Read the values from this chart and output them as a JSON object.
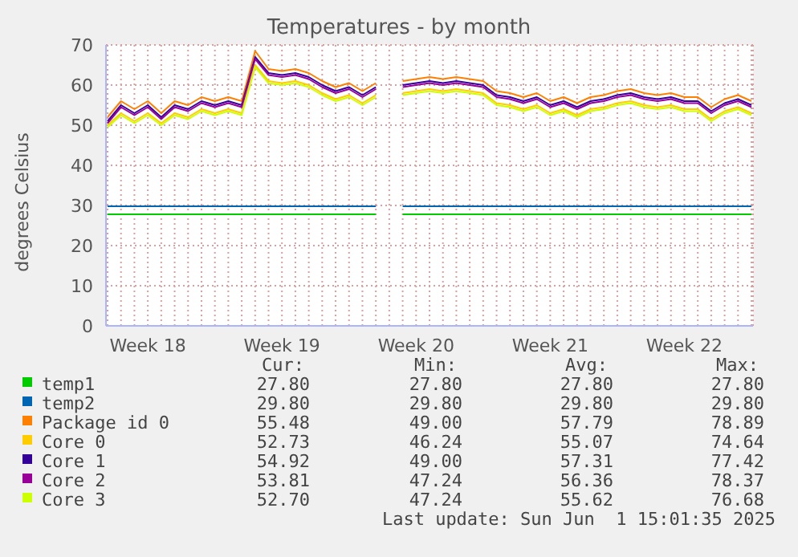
{
  "chart_data": {
    "type": "line",
    "title": "Temperatures - by month",
    "ylabel": "degrees Celsius",
    "categories": [
      null,
      null,
      null,
      "Week 18",
      null,
      null,
      null,
      null,
      null,
      null,
      null,
      null,
      null,
      "Week 19",
      null,
      null,
      null,
      null,
      null,
      null,
      null,
      null,
      null,
      "Week 20",
      null,
      null,
      null,
      null,
      null,
      null,
      null,
      null,
      null,
      "Week 21",
      null,
      null,
      null,
      null,
      null,
      null,
      null,
      null,
      null,
      "Week 22",
      null,
      null,
      null,
      null,
      null
    ],
    "ylim": [
      0,
      70
    ],
    "yticks": [
      0,
      10,
      20,
      30,
      40,
      50,
      60,
      70
    ],
    "grid": true,
    "legend": "bottom",
    "line_style": "solid",
    "series": [
      {
        "name": "temp1",
        "color": "#00cc00",
        "values": [
          27.8,
          27.8,
          27.8,
          27.8,
          27.8,
          27.8,
          27.8,
          27.8,
          27.8,
          27.8,
          27.8,
          27.8,
          27.8,
          27.8,
          27.8,
          27.8,
          27.8,
          27.8,
          27.8,
          27.8,
          27.8,
          null,
          27.8,
          27.8,
          27.8,
          27.8,
          27.8,
          27.8,
          27.8,
          27.8,
          27.8,
          27.8,
          27.8,
          27.8,
          27.8,
          27.8,
          27.8,
          27.8,
          27.8,
          27.8,
          27.8,
          27.8,
          27.8,
          27.8,
          27.8,
          27.8,
          27.8,
          27.8,
          27.8
        ]
      },
      {
        "name": "temp2",
        "color": "#0066b3",
        "values": [
          29.8,
          29.8,
          29.8,
          29.8,
          29.8,
          29.8,
          29.8,
          29.8,
          29.8,
          29.8,
          29.8,
          29.8,
          29.8,
          29.8,
          29.8,
          29.8,
          29.8,
          29.8,
          29.8,
          29.8,
          29.8,
          null,
          29.8,
          29.8,
          29.8,
          29.8,
          29.8,
          29.8,
          29.8,
          29.8,
          29.8,
          29.8,
          29.8,
          29.8,
          29.8,
          29.8,
          29.8,
          29.8,
          29.8,
          29.8,
          29.8,
          29.8,
          29.8,
          29.8,
          29.8,
          29.8,
          29.8,
          29.8,
          29.8
        ]
      },
      {
        "name": "Package id 0",
        "color": "#ff8000",
        "values": [
          52,
          56,
          54,
          56,
          53,
          56,
          55,
          57,
          56,
          57,
          56,
          68.5,
          64,
          63.5,
          64,
          63,
          61,
          59.5,
          60.5,
          58.5,
          60.5,
          null,
          61,
          61.5,
          62,
          61.5,
          62,
          61.5,
          61,
          58.5,
          58,
          57,
          58,
          56,
          57,
          55.5,
          57,
          57.5,
          58.5,
          59,
          58,
          57.5,
          58,
          57,
          57,
          54.5,
          56.5,
          57.5,
          56
        ]
      },
      {
        "name": "Core 0",
        "color": "#ffcc00",
        "values": [
          50,
          53,
          51,
          53,
          50.5,
          53,
          52,
          54,
          53,
          54,
          53,
          65,
          61,
          60.5,
          61,
          60,
          58,
          56.5,
          57.5,
          55.5,
          57.5,
          null,
          58,
          58.5,
          59,
          58.5,
          59,
          58.5,
          58,
          55.5,
          55,
          54,
          55,
          53,
          54,
          52.5,
          54,
          54.5,
          55.5,
          56,
          55,
          54.5,
          55,
          54,
          54,
          51.5,
          53.5,
          54.5,
          53
        ]
      },
      {
        "name": "Core 1",
        "color": "#330099",
        "values": [
          51,
          55,
          53,
          55,
          52,
          55,
          54,
          56,
          55,
          56,
          55,
          67,
          63,
          62.5,
          63,
          62,
          60,
          58.5,
          59.5,
          57.5,
          59.5,
          null,
          60,
          60.5,
          61,
          60.5,
          61,
          60.5,
          60,
          57.5,
          57,
          56,
          57,
          55,
          56,
          54.5,
          56,
          56.5,
          57.5,
          58,
          57,
          56.5,
          57,
          56,
          56,
          53.5,
          55.5,
          56.5,
          55
        ]
      },
      {
        "name": "Core 2",
        "color": "#990099",
        "values": [
          50.5,
          54.5,
          52.5,
          54.5,
          51.5,
          54.5,
          53.5,
          55.5,
          54.5,
          55.5,
          54.5,
          66.5,
          62.5,
          62,
          62.5,
          61.5,
          59.5,
          58,
          59,
          57,
          59,
          null,
          59.5,
          60,
          60.5,
          60,
          60.5,
          60,
          59.5,
          57,
          56.5,
          55.5,
          56.5,
          54.5,
          55.5,
          54,
          55.5,
          56,
          57,
          57.5,
          56.5,
          56,
          56.5,
          55.5,
          55.5,
          53,
          55,
          56,
          54.5
        ]
      },
      {
        "name": "Core 3",
        "color": "#ccff00",
        "values": [
          49.5,
          52.5,
          50.5,
          52.5,
          50,
          52.5,
          51.5,
          53.5,
          52.5,
          53.5,
          52.5,
          64.5,
          60.5,
          60,
          60.5,
          59.5,
          57.5,
          56,
          57,
          55,
          57,
          null,
          57.5,
          58,
          58.5,
          58,
          58.5,
          58,
          57.5,
          55,
          54.5,
          53.5,
          54.5,
          52.5,
          53.5,
          52,
          53.5,
          54,
          55,
          55.5,
          54.5,
          54,
          54.5,
          53.5,
          53.5,
          51,
          53,
          54,
          52.5
        ]
      }
    ],
    "annotations": [
      "Cur:",
      "Min:",
      "Avg:",
      "Max:",
      "27.80",
      "27.80",
      "27.80",
      "27.80",
      "29.80",
      "29.80",
      "29.80",
      "29.80",
      "55.48",
      "49.00",
      "57.79",
      "78.89",
      "52.73",
      "46.24",
      "55.07",
      "74.64",
      "54.92",
      "49.00",
      "57.31",
      "77.42",
      "53.81",
      "47.24",
      "56.36",
      "78.37",
      "52.70",
      "47.24",
      "55.62",
      "76.68",
      "Last update: Sun Jun  1 15:01:35 2025"
    ]
  }
}
